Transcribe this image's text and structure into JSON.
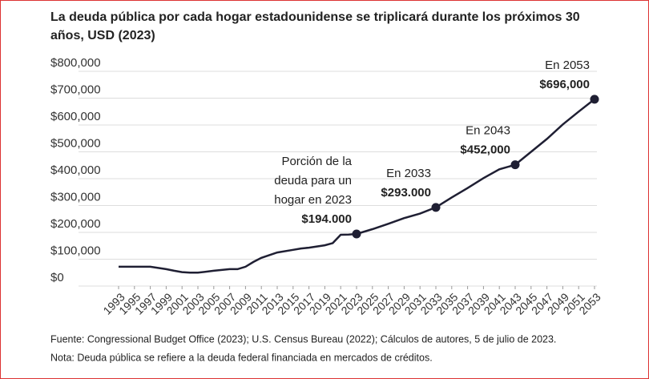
{
  "chart_data": {
    "type": "line",
    "title": [
      "La deuda pública por cada hogar estadounidense se triplicará durante los próximos 30",
      "años, USD (2023)"
    ],
    "x": [
      1993,
      1995,
      1997,
      1999,
      2000,
      2001,
      2002,
      2003,
      2005,
      2007,
      2008,
      2009,
      2010,
      2011,
      2013,
      2015,
      2016,
      2017,
      2019,
      2020,
      2021,
      2022,
      2023,
      2025,
      2027,
      2029,
      2031,
      2033,
      2035,
      2037,
      2039,
      2041,
      2043,
      2045,
      2047,
      2049,
      2051,
      2053
    ],
    "values": [
      72000,
      72000,
      72000,
      63000,
      57000,
      52000,
      50000,
      50000,
      57000,
      63000,
      63000,
      72000,
      90000,
      105000,
      125000,
      135000,
      140000,
      143000,
      152000,
      160000,
      191000,
      192000,
      194000,
      212000,
      232000,
      253000,
      270000,
      293000,
      330000,
      365000,
      402000,
      435000,
      452000,
      500000,
      548000,
      602000,
      650000,
      696000
    ],
    "value_labels": [
      null,
      null,
      null,
      null,
      null,
      null,
      null,
      null,
      null,
      null,
      null,
      null,
      null,
      null,
      null,
      null,
      null,
      null,
      null,
      null,
      null,
      null,
      "$194.000",
      null,
      null,
      null,
      null,
      "$293.000",
      null,
      null,
      null,
      null,
      "$452,000",
      null,
      null,
      null,
      null,
      "$696,000"
    ],
    "annotations": [
      [
        "Porción de la",
        "deuda para un",
        "hogar en 2023"
      ],
      [
        "En 2033"
      ],
      [
        "En 2043"
      ],
      [
        "En 2053"
      ]
    ],
    "color": "#1f1f33",
    "xlim": [
      1993,
      2053
    ],
    "xticks": [
      1993,
      1995,
      1997,
      1999,
      2001,
      2003,
      2005,
      2007,
      2009,
      2011,
      2013,
      2015,
      2017,
      2019,
      2021,
      2023,
      2025,
      2027,
      2029,
      2031,
      2033,
      2035,
      2037,
      2039,
      2041,
      2043,
      2045,
      2047,
      2049,
      2051,
      2053
    ],
    "ylim": [
      0,
      800000
    ],
    "yticks": [
      {
        "value": 0,
        "label": "$0"
      },
      {
        "value": 100000,
        "label": "$100,000"
      },
      {
        "value": 200000,
        "label": "$200,000"
      },
      {
        "value": 300000,
        "label": "$300,000"
      },
      {
        "value": 400000,
        "label": "$400,000"
      },
      {
        "value": 500000,
        "label": "$500,000"
      },
      {
        "value": 600000,
        "label": "$600,000"
      },
      {
        "value": 700000,
        "label": "$700,000"
      },
      {
        "value": 800000,
        "label": "$800,000"
      }
    ],
    "grid": true,
    "source": "Fuente: Congressional Budget Office (2023); U.S. Census Bureau (2022); Cálculos de autores, 5 de julio de 2023.",
    "note": "Nota: Deuda pública se refiere a la deuda federal financiada en mercados de créditos."
  }
}
